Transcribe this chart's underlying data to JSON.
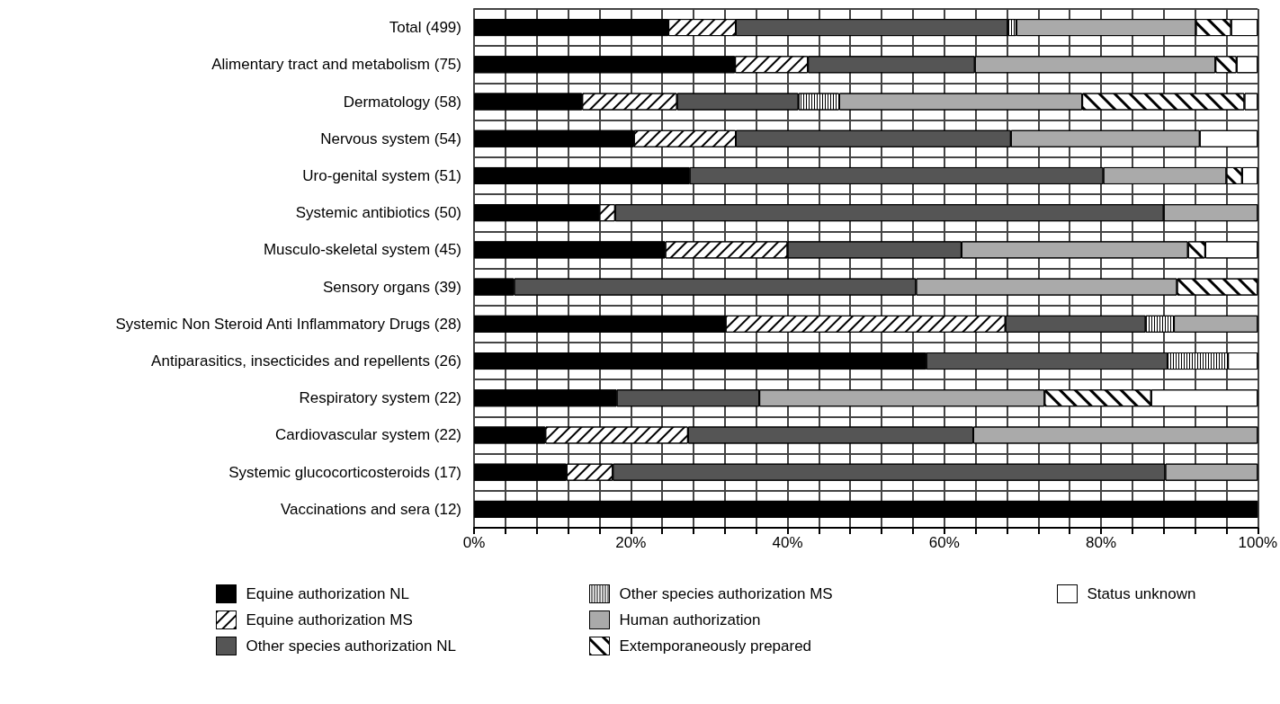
{
  "chart_data": {
    "type": "bar",
    "orientation": "horizontal",
    "stacked": true,
    "categories": [
      "Total (499)",
      "Alimentary tract and metabolism (75)",
      "Dermatology (58)",
      "Nervous system (54)",
      "Uro-genital system (51)",
      "Systemic antibiotics (50)",
      "Musculo-skeletal system (45)",
      "Sensory organs (39)",
      "Systemic Non Steroid Anti Inflammatory Drugs (28)",
      "Antiparasitics, insecticides and repellents (26)",
      "Respiratory system (22)",
      "Cardiovascular system (22)",
      "Systemic glucocorticosteroids (17)",
      "Vaccinations and sera (12)"
    ],
    "series": [
      {
        "name": "Equine authorization NL",
        "color": "#000000",
        "values": [
          24.8,
          33.3,
          13.8,
          20.4,
          27.5,
          16,
          24.4,
          5.1,
          32.1,
          57.7,
          18.2,
          9.1,
          11.8,
          100
        ]
      },
      {
        "name": "Equine authorization MS",
        "color": "#ffffff",
        "values": [
          8.6,
          9.3,
          12.1,
          13.0,
          null,
          2,
          15.6,
          null,
          35.7,
          null,
          null,
          18.2,
          5.9,
          null
        ]
      },
      {
        "name": "Other species authorization NL",
        "color": "#555555",
        "values": [
          34.7,
          21.3,
          15.5,
          35.1,
          52.8,
          70,
          22.2,
          51.3,
          17.9,
          30.8,
          18.2,
          36.4,
          70.5,
          null
        ]
      },
      {
        "name": "Other species authorization MS",
        "color": "#ffffff",
        "values": [
          1.1,
          null,
          5.2,
          null,
          null,
          null,
          null,
          null,
          3.6,
          7.7,
          null,
          null,
          null,
          null
        ]
      },
      {
        "name": "Human authorization",
        "color": "#aaaaaa",
        "values": [
          22.9,
          30.7,
          31.0,
          24.1,
          15.7,
          12,
          28.9,
          33.3,
          10.7,
          null,
          36.4,
          36.3,
          11.8,
          null
        ]
      },
      {
        "name": "Extemporaneously prepared",
        "color": "#ffffff",
        "values": [
          4.5,
          2.7,
          20.7,
          null,
          2.0,
          null,
          2.2,
          10.3,
          null,
          null,
          13.6,
          null,
          null,
          null
        ]
      },
      {
        "name": "Status unknown",
        "color": "#ffffff",
        "values": [
          3.4,
          2.7,
          1.7,
          7.4,
          2.0,
          null,
          6.7,
          null,
          null,
          3.8,
          13.6,
          null,
          null,
          null
        ]
      }
    ],
    "xlim": [
      0,
      100
    ],
    "xticks": [
      {
        "value": 0,
        "label": "0%"
      },
      {
        "value": 4,
        "label": null
      },
      {
        "value": 8,
        "label": null
      },
      {
        "value": 12,
        "label": null
      },
      {
        "value": 16,
        "label": null
      },
      {
        "value": 20,
        "label": "20%"
      },
      {
        "value": 24,
        "label": null
      },
      {
        "value": 28,
        "label": null
      },
      {
        "value": 32,
        "label": null
      },
      {
        "value": 36,
        "label": null
      },
      {
        "value": 40,
        "label": "40%"
      },
      {
        "value": 44,
        "label": null
      },
      {
        "value": 48,
        "label": null
      },
      {
        "value": 52,
        "label": null
      },
      {
        "value": 56,
        "label": null
      },
      {
        "value": 60,
        "label": "60%"
      },
      {
        "value": 64,
        "label": null
      },
      {
        "value": 68,
        "label": null
      },
      {
        "value": 72,
        "label": null
      },
      {
        "value": 76,
        "label": null
      },
      {
        "value": 80,
        "label": "80%"
      },
      {
        "value": 84,
        "label": null
      },
      {
        "value": 88,
        "label": null
      },
      {
        "value": 92,
        "label": null
      },
      {
        "value": 96,
        "label": null
      },
      {
        "value": 100,
        "label": "100%"
      }
    ],
    "grid": true,
    "legend": "bottom"
  }
}
